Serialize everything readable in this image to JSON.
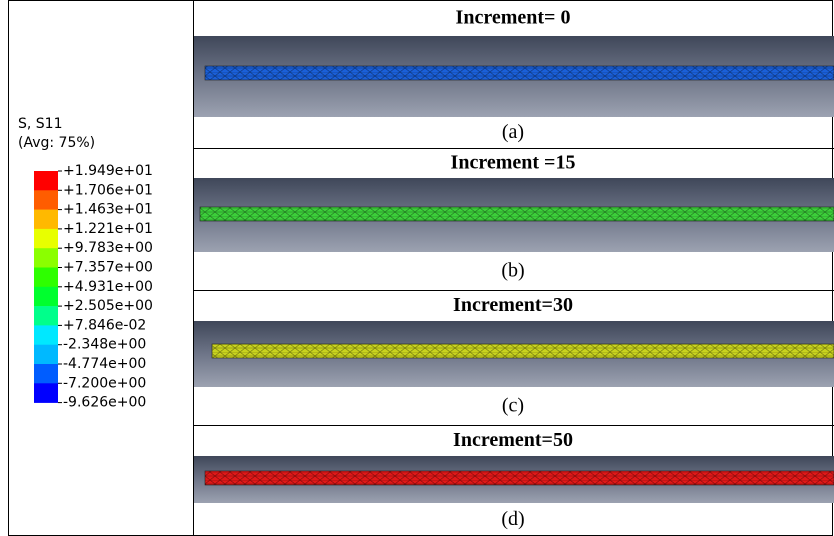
{
  "legend": {
    "title": "S, S11",
    "subtitle": "(Avg: 75%)",
    "labels": [
      "+1.949e+01",
      "+1.706e+01",
      "+1.463e+01",
      "+1.221e+01",
      "+9.783e+00",
      "+7.357e+00",
      "+4.931e+00",
      "+2.505e+00",
      "+7.846e-02",
      "-2.348e+00",
      "-4.774e+00",
      "-7.200e+00",
      "-9.626e+00"
    ],
    "colors": [
      "#ff0000",
      "#ff5d00",
      "#ffb900",
      "#e8ff00",
      "#8bff00",
      "#2eff00",
      "#00ff2e",
      "#00ff8b",
      "#00e8ff",
      "#00b9ff",
      "#005dff",
      "#0000ff"
    ]
  },
  "panels": [
    {
      "title": "Increment= 0",
      "caption": "(a)",
      "rod_color": "#1a5fd8"
    },
    {
      "title": "Increment =15",
      "caption": "(b)",
      "rod_color": "#3ccf3a"
    },
    {
      "title": "Increment=30",
      "caption": "(c)",
      "rod_color": "#c8d21e"
    },
    {
      "title": "Increment=50",
      "caption": "(d)",
      "rod_color": "#e01818"
    }
  ]
}
